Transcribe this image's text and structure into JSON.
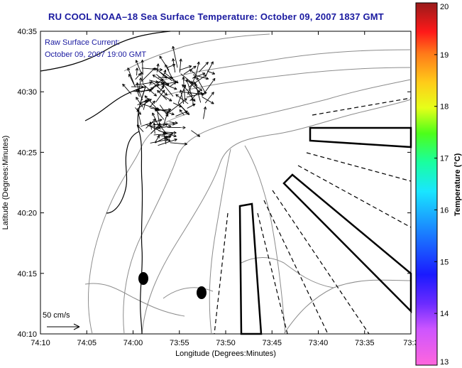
{
  "title": "RU COOL  NOAA–18  Sea Surface Temperature:  October 09, 2007 1837 GMT",
  "annotation": {
    "line1": "Raw Surface Current:",
    "line2": "October 09, 2007 19:00 GMT"
  },
  "scale_label": "50 cm/s",
  "x_axis": {
    "label": "Longitude (Degrees:Minutes)",
    "ticks": [
      "74:10",
      "74:05",
      "74:00",
      "73:55",
      "73:50",
      "73:45",
      "73:40",
      "73:35",
      "73:3"
    ]
  },
  "y_axis": {
    "label": "Latitude (Degrees:Minutes)",
    "ticks": [
      "40:35",
      "40:30",
      "40:25",
      "40:20",
      "40:15",
      "40:10"
    ]
  },
  "colorbar": {
    "label": "Temperature (°C)",
    "ticks": [
      "20",
      "19",
      "18",
      "17",
      "16",
      "15",
      "14",
      "13"
    ]
  },
  "chart_data": {
    "type": "scatter",
    "title": "RU COOL  NOAA–18  Sea Surface Temperature:  October 09, 2007 1837 GMT",
    "xlabel": "Longitude (Degrees:Minutes)",
    "ylabel": "Latitude (Degrees:Minutes)",
    "xlim": [
      "74:10",
      "73:30"
    ],
    "ylim": [
      "40:10",
      "40:35"
    ],
    "colorbar_range": [
      13,
      20
    ],
    "colorbar_unit": "Temperature (°C)",
    "vector_reference": "50 cm/s",
    "grid": false
  },
  "colors": {
    "title": "#1a1aa0",
    "annotation": "#1a1aa0",
    "contour": "#8c8c8c",
    "coast": "#000000"
  }
}
